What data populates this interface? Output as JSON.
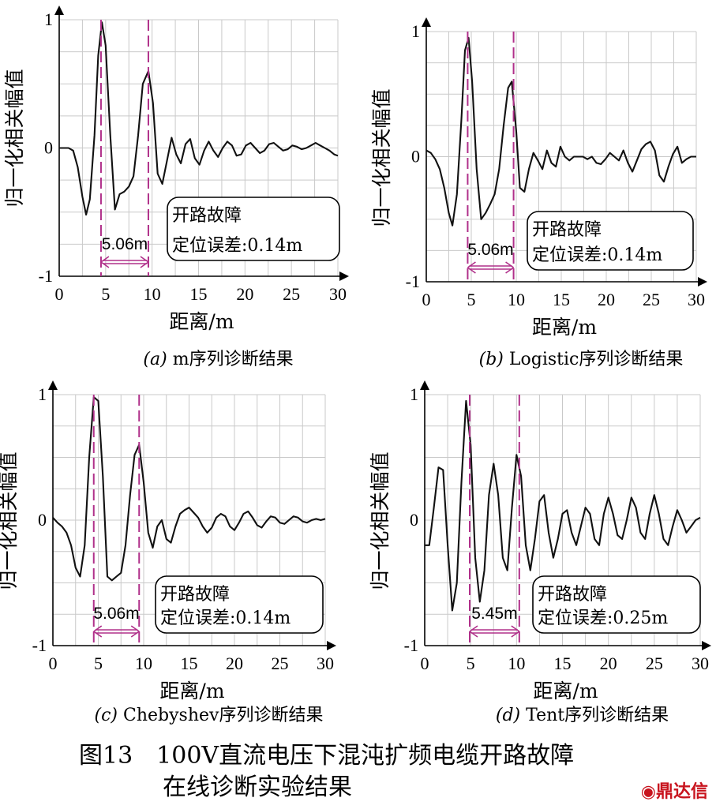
{
  "chart_data": [
    {
      "type": "line",
      "xlim": [
        0,
        30
      ],
      "ylim": [
        -1,
        1
      ],
      "xticks": [
        "0",
        "5",
        "10",
        "15",
        "20",
        "25",
        "30"
      ],
      "yticks": [
        "1",
        "0",
        "-1"
      ],
      "xlabel": "距离/m",
      "ylabel": "归一化相关幅值",
      "caption_label": "(a)",
      "caption": "m序列诊断结果",
      "annotation_line1": "开路故障",
      "annotation_line2": "定位误差:0.14m",
      "distance_label": "5.06m",
      "markers": [
        4.5,
        9.6
      ],
      "grid": true,
      "x": [
        0,
        1,
        1.5,
        2,
        2.5,
        2.9,
        3.3,
        3.8,
        4.2,
        4.6,
        5.0,
        5.5,
        6.0,
        6.5,
        7.0,
        7.5,
        8.0,
        8.5,
        9.0,
        9.6,
        10.1,
        10.6,
        11.1,
        11.6,
        12.1,
        12.6,
        13.1,
        13.6,
        14.1,
        14.6,
        15.1,
        15.6,
        16.1,
        16.6,
        17.1,
        17.6,
        18.1,
        18.6,
        19.1,
        19.6,
        20.1,
        20.6,
        21.1,
        21.6,
        22.1,
        22.6,
        23.1,
        23.6,
        24.1,
        24.6,
        25.1,
        25.6,
        26.1,
        26.6,
        27.1,
        27.6,
        28.1,
        28.6,
        29.1,
        29.6,
        30.0
      ],
      "y": [
        0,
        0,
        -0.02,
        -0.15,
        -0.38,
        -0.52,
        -0.4,
        0.1,
        0.72,
        0.98,
        0.8,
        0.1,
        -0.48,
        -0.36,
        -0.34,
        -0.3,
        -0.22,
        0.1,
        0.5,
        0.6,
        0.35,
        -0.2,
        -0.28,
        -0.1,
        0.08,
        -0.05,
        -0.12,
        0.03,
        0.07,
        -0.08,
        -0.13,
        -0.02,
        0.05,
        -0.02,
        -0.07,
        0,
        0.05,
        0.02,
        -0.06,
        -0.05,
        0.02,
        0.04,
        0,
        -0.04,
        -0.02,
        0.03,
        0.04,
        0.01,
        -0.02,
        -0.01,
        0.02,
        0.01,
        -0.01,
        0,
        0.02,
        0.04,
        0.02,
        0,
        -0.02,
        -0.05,
        -0.06
      ]
    },
    {
      "type": "line",
      "xlim": [
        0,
        30
      ],
      "ylim": [
        -1,
        1
      ],
      "xticks": [
        "0",
        "5",
        "10",
        "15",
        "20",
        "25",
        "30"
      ],
      "yticks": [
        "1",
        "0",
        "-1"
      ],
      "xlabel": "距离/m",
      "ylabel": "归一化相关幅值",
      "caption_label": "(b)",
      "caption": "Logistic序列诊断结果",
      "annotation_line1": "开路故障",
      "annotation_line2": "定位误差:0.14m",
      "distance_label": "5.06m",
      "markers": [
        4.6,
        9.7
      ],
      "grid": true,
      "x": [
        0,
        0.5,
        1.0,
        1.5,
        2.0,
        2.5,
        2.9,
        3.4,
        3.9,
        4.3,
        4.7,
        5.1,
        5.6,
        6.1,
        6.6,
        7.1,
        7.6,
        8.1,
        8.6,
        9.1,
        9.5,
        10.0,
        10.4,
        10.9,
        11.4,
        11.9,
        12.4,
        12.9,
        13.4,
        13.9,
        14.4,
        14.9,
        15.4,
        15.9,
        16.4,
        16.9,
        17.4,
        17.9,
        18.4,
        18.9,
        19.4,
        19.9,
        20.4,
        20.9,
        21.4,
        21.9,
        22.4,
        22.9,
        23.4,
        23.9,
        24.4,
        24.9,
        25.4,
        25.9,
        26.4,
        26.9,
        27.4,
        27.9,
        28.4,
        28.9,
        29.4,
        30.0
      ],
      "y": [
        0.05,
        0.03,
        -0.02,
        -0.1,
        -0.25,
        -0.45,
        -0.55,
        -0.3,
        0.3,
        0.85,
        0.95,
        0.6,
        -0.1,
        -0.5,
        -0.45,
        -0.38,
        -0.3,
        -0.1,
        0.25,
        0.55,
        0.6,
        0.2,
        -0.25,
        -0.28,
        -0.1,
        0.03,
        -0.03,
        -0.1,
        0.05,
        -0.05,
        -0.08,
        0.08,
        0,
        -0.03,
        0,
        0,
        0,
        -0.02,
        0,
        -0.05,
        -0.06,
        -0.02,
        0.03,
        0,
        -0.03,
        0.05,
        -0.05,
        -0.12,
        -0.03,
        0.06,
        0.1,
        0.12,
        0.05,
        -0.15,
        -0.2,
        -0.08,
        0.02,
        0.08,
        -0.05,
        -0.02,
        0,
        0.0
      ]
    },
    {
      "type": "line",
      "xlim": [
        0,
        30
      ],
      "ylim": [
        -1,
        1
      ],
      "xticks": [
        "0",
        "5",
        "10",
        "15",
        "20",
        "25",
        "30"
      ],
      "yticks": [
        "1",
        "0",
        "-1"
      ],
      "xlabel": "距离/m",
      "ylabel": "归一化相关幅值",
      "caption_label": "(c)",
      "caption": "Chebyshev序列诊断结果",
      "annotation_line1": "开路故障",
      "annotation_line2": "定位误差:0.14m",
      "distance_label": "5.06m",
      "markers": [
        4.5,
        9.5
      ],
      "grid": true,
      "x": [
        0,
        0.5,
        1.0,
        1.5,
        2.0,
        2.5,
        3.0,
        3.5,
        4.0,
        4.5,
        5.0,
        5.5,
        6.0,
        6.5,
        7.0,
        7.5,
        8.0,
        8.5,
        9.0,
        9.5,
        10.0,
        10.5,
        11.0,
        11.5,
        12.0,
        12.5,
        13.0,
        13.5,
        14.0,
        14.5,
        15.0,
        15.5,
        16.0,
        16.5,
        17.0,
        17.5,
        18.0,
        18.5,
        19.0,
        19.5,
        20.0,
        20.5,
        21.0,
        21.5,
        22.0,
        22.5,
        23.0,
        23.5,
        24.0,
        24.5,
        25.0,
        25.5,
        26.0,
        26.5,
        27.0,
        27.5,
        28.0,
        28.5,
        29.0,
        29.5,
        30.0
      ],
      "y": [
        0.02,
        -0.02,
        -0.05,
        -0.1,
        -0.2,
        -0.38,
        -0.45,
        -0.2,
        0.5,
        0.98,
        0.95,
        0.35,
        -0.45,
        -0.48,
        -0.45,
        -0.42,
        -0.2,
        0.2,
        0.52,
        0.6,
        0.3,
        -0.1,
        -0.22,
        -0.05,
        0,
        -0.15,
        -0.18,
        -0.05,
        0.05,
        0.08,
        0.1,
        0.06,
        0.02,
        -0.05,
        -0.1,
        -0.06,
        0.02,
        0.05,
        0.03,
        -0.05,
        -0.08,
        -0.02,
        0.05,
        0.07,
        0.02,
        -0.04,
        -0.06,
        -0.01,
        0.03,
        0.02,
        -0.02,
        -0.03,
        0.0,
        0.03,
        0.02,
        -0.01,
        -0.02,
        0,
        0.01,
        0.0,
        0.01
      ]
    },
    {
      "type": "line",
      "xlim": [
        0,
        30
      ],
      "ylim": [
        -1,
        1
      ],
      "xticks": [
        "0",
        "5",
        "10",
        "15",
        "20",
        "25",
        "30"
      ],
      "yticks": [
        "1",
        "0",
        "-1"
      ],
      "xlabel": "距离/m",
      "ylabel": "归一化相关幅值",
      "caption_label": "(d)",
      "caption": "Tent序列诊断结果",
      "annotation_line1": "开路故障",
      "annotation_line2": "定位误差:0.25m",
      "distance_label": "5.45m",
      "markers": [
        4.9,
        10.3
      ],
      "grid": true,
      "x": [
        0,
        0.5,
        1.0,
        1.5,
        2.0,
        2.5,
        3.0,
        3.5,
        4.0,
        4.5,
        5.0,
        5.5,
        6.0,
        6.5,
        7.0,
        7.5,
        8.0,
        8.5,
        9.0,
        9.5,
        10.0,
        10.5,
        11.0,
        11.5,
        12.0,
        12.5,
        13.0,
        13.5,
        14.0,
        14.5,
        15.0,
        15.5,
        16.0,
        16.5,
        17.0,
        17.5,
        18.0,
        18.5,
        19.0,
        19.5,
        20.0,
        20.5,
        21.0,
        21.5,
        22.0,
        22.5,
        23.0,
        23.5,
        24.0,
        24.5,
        25.0,
        25.5,
        26.0,
        26.5,
        27.0,
        27.5,
        28.0,
        28.5,
        29.0,
        29.5,
        30.0
      ],
      "y": [
        -0.2,
        -0.2,
        0.1,
        0.42,
        0.4,
        -0.2,
        -0.72,
        -0.5,
        0.3,
        0.95,
        0.6,
        -0.3,
        -0.65,
        -0.4,
        0.2,
        0.45,
        0.2,
        -0.3,
        -0.4,
        0.1,
        0.52,
        0.35,
        -0.2,
        -0.4,
        -0.15,
        0.15,
        0.2,
        -0.1,
        -0.3,
        -0.15,
        0.05,
        0.08,
        -0.1,
        -0.2,
        -0.05,
        0.1,
        0.05,
        -0.15,
        -0.2,
        0.05,
        0.18,
        0.05,
        -0.12,
        -0.15,
        0.0,
        0.18,
        0.1,
        -0.1,
        -0.15,
        0.05,
        0.2,
        0.05,
        -0.15,
        -0.2,
        -0.05,
        0.08,
        0.0,
        -0.1,
        -0.05,
        0.0,
        0.02
      ]
    }
  ],
  "figure": {
    "title_line1": "图13　100V直流电压下混沌扩频电缆开路故障",
    "title_line2": "在线诊断实验结果",
    "watermark": "鼎达信"
  },
  "colors": {
    "marker": "#b0308a",
    "curve": "#111111",
    "grid": "#c9c9c9",
    "watermark": "#c8141e"
  }
}
